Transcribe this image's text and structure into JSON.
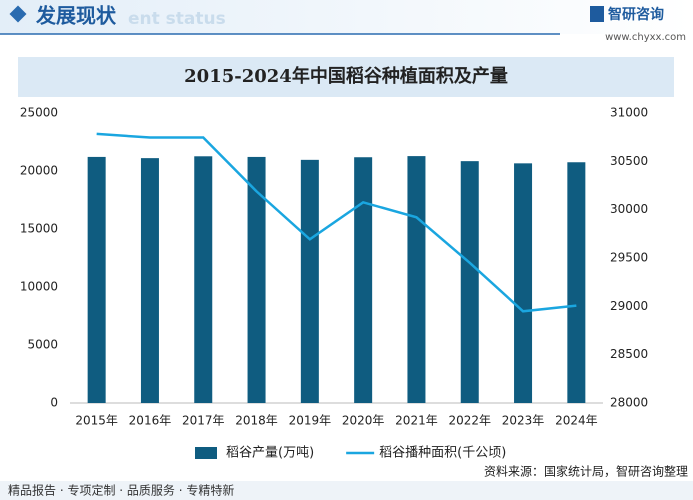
{
  "header": {
    "section": "发展现状",
    "watermark": "ent status",
    "brand": "智研咨询",
    "url": "www.chyxx.com"
  },
  "chart_data": {
    "type": "bar",
    "title": "2015-2024年中国稻谷种植面积及产量",
    "categories": [
      "2015年",
      "2016年",
      "2017年",
      "2018年",
      "2019年",
      "2020年",
      "2021年",
      "2022年",
      "2023年",
      "2024年"
    ],
    "series": [
      {
        "name": "稻谷产量(万吨)",
        "type": "bar",
        "color": "#0f5c80",
        "values": [
          21214,
          21109,
          21268,
          21213,
          20961,
          21186,
          21284,
          20849,
          20660,
          20754
        ]
      },
      {
        "name": "稻谷播种面积(千公顷)",
        "type": "line",
        "axis": "y2",
        "color": "#1aa6e0",
        "values": [
          30784,
          30746,
          30747,
          30189,
          29694,
          30076,
          29921,
          29450,
          28949,
          29007
        ]
      }
    ],
    "ylim": [
      0,
      25000
    ],
    "yticks": [
      0,
      5000,
      10000,
      15000,
      20000,
      25000
    ],
    "y2lim": [
      28000,
      31000
    ],
    "y2ticks": [
      28000,
      28500,
      29000,
      29500,
      30000,
      30500,
      31000
    ],
    "grid": false
  },
  "source": "资料来源：国家统计局，智研咨询整理",
  "footer": "精品报告 · 专项定制 · 品质服务 · 专精特新"
}
